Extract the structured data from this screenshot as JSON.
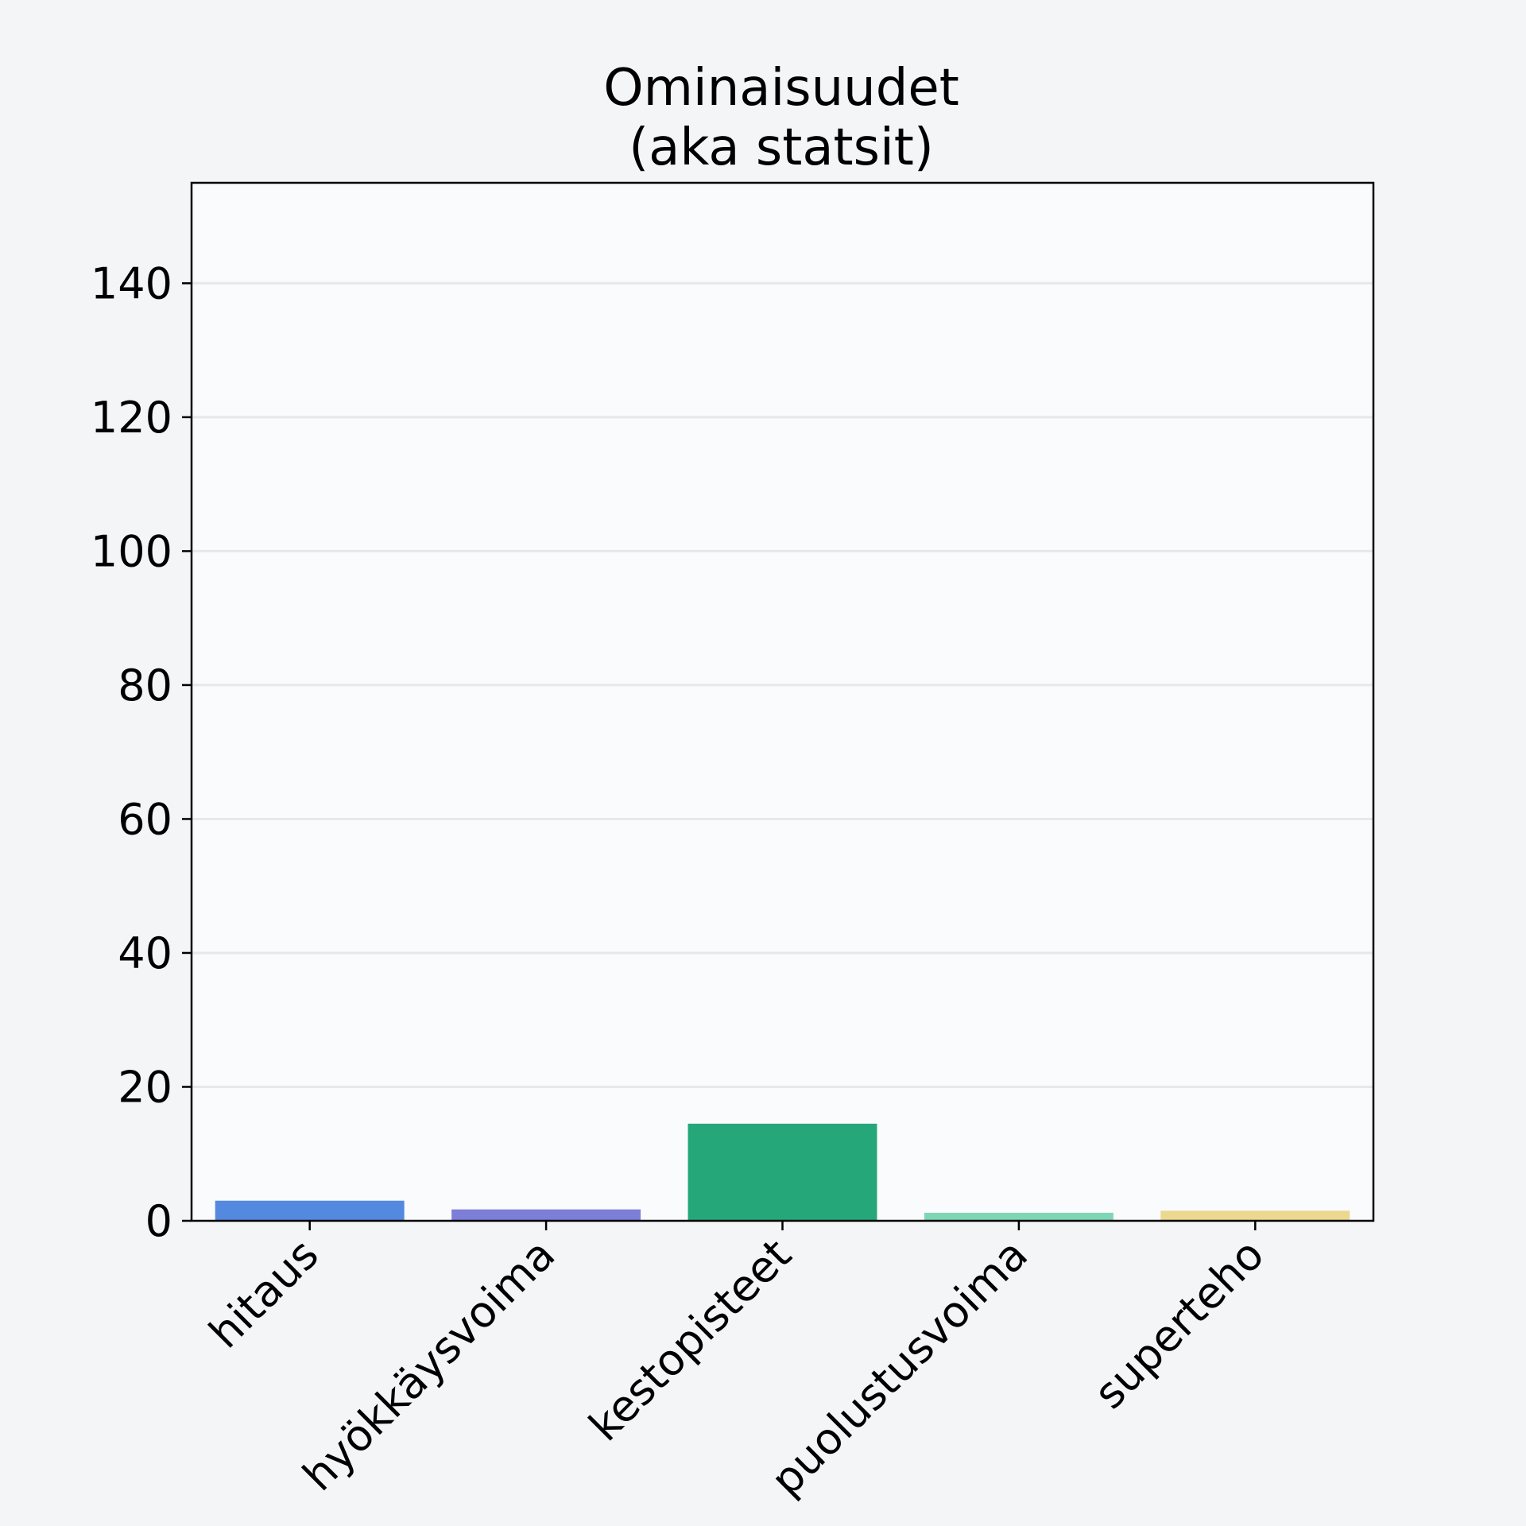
{
  "chart_data": {
    "type": "bar",
    "title_lines": [
      "Ominaisuudet",
      "(aka statsit)"
    ],
    "xlabel": "",
    "ylabel": "",
    "categories": [
      "hitaus",
      "hyökkäysvoima",
      "kestopisteet",
      "puolustusvoima",
      "superteho"
    ],
    "values": [
      3,
      1.7,
      14.5,
      1.2,
      1.5
    ],
    "colors": [
      "#5489e0",
      "#7c7ed8",
      "#26a77a",
      "#7fd6b4",
      "#ecd88f"
    ],
    "ylim": [
      0,
      155
    ],
    "yticks": [
      0,
      20,
      40,
      60,
      80,
      100,
      120,
      140
    ],
    "grid": "horizontal",
    "legend": "none"
  },
  "style": {
    "page_background": "#f4f5f7",
    "plot_background": "#f9fbfc",
    "grid_color": "#e6e8ea",
    "axis_color": "#000000"
  }
}
